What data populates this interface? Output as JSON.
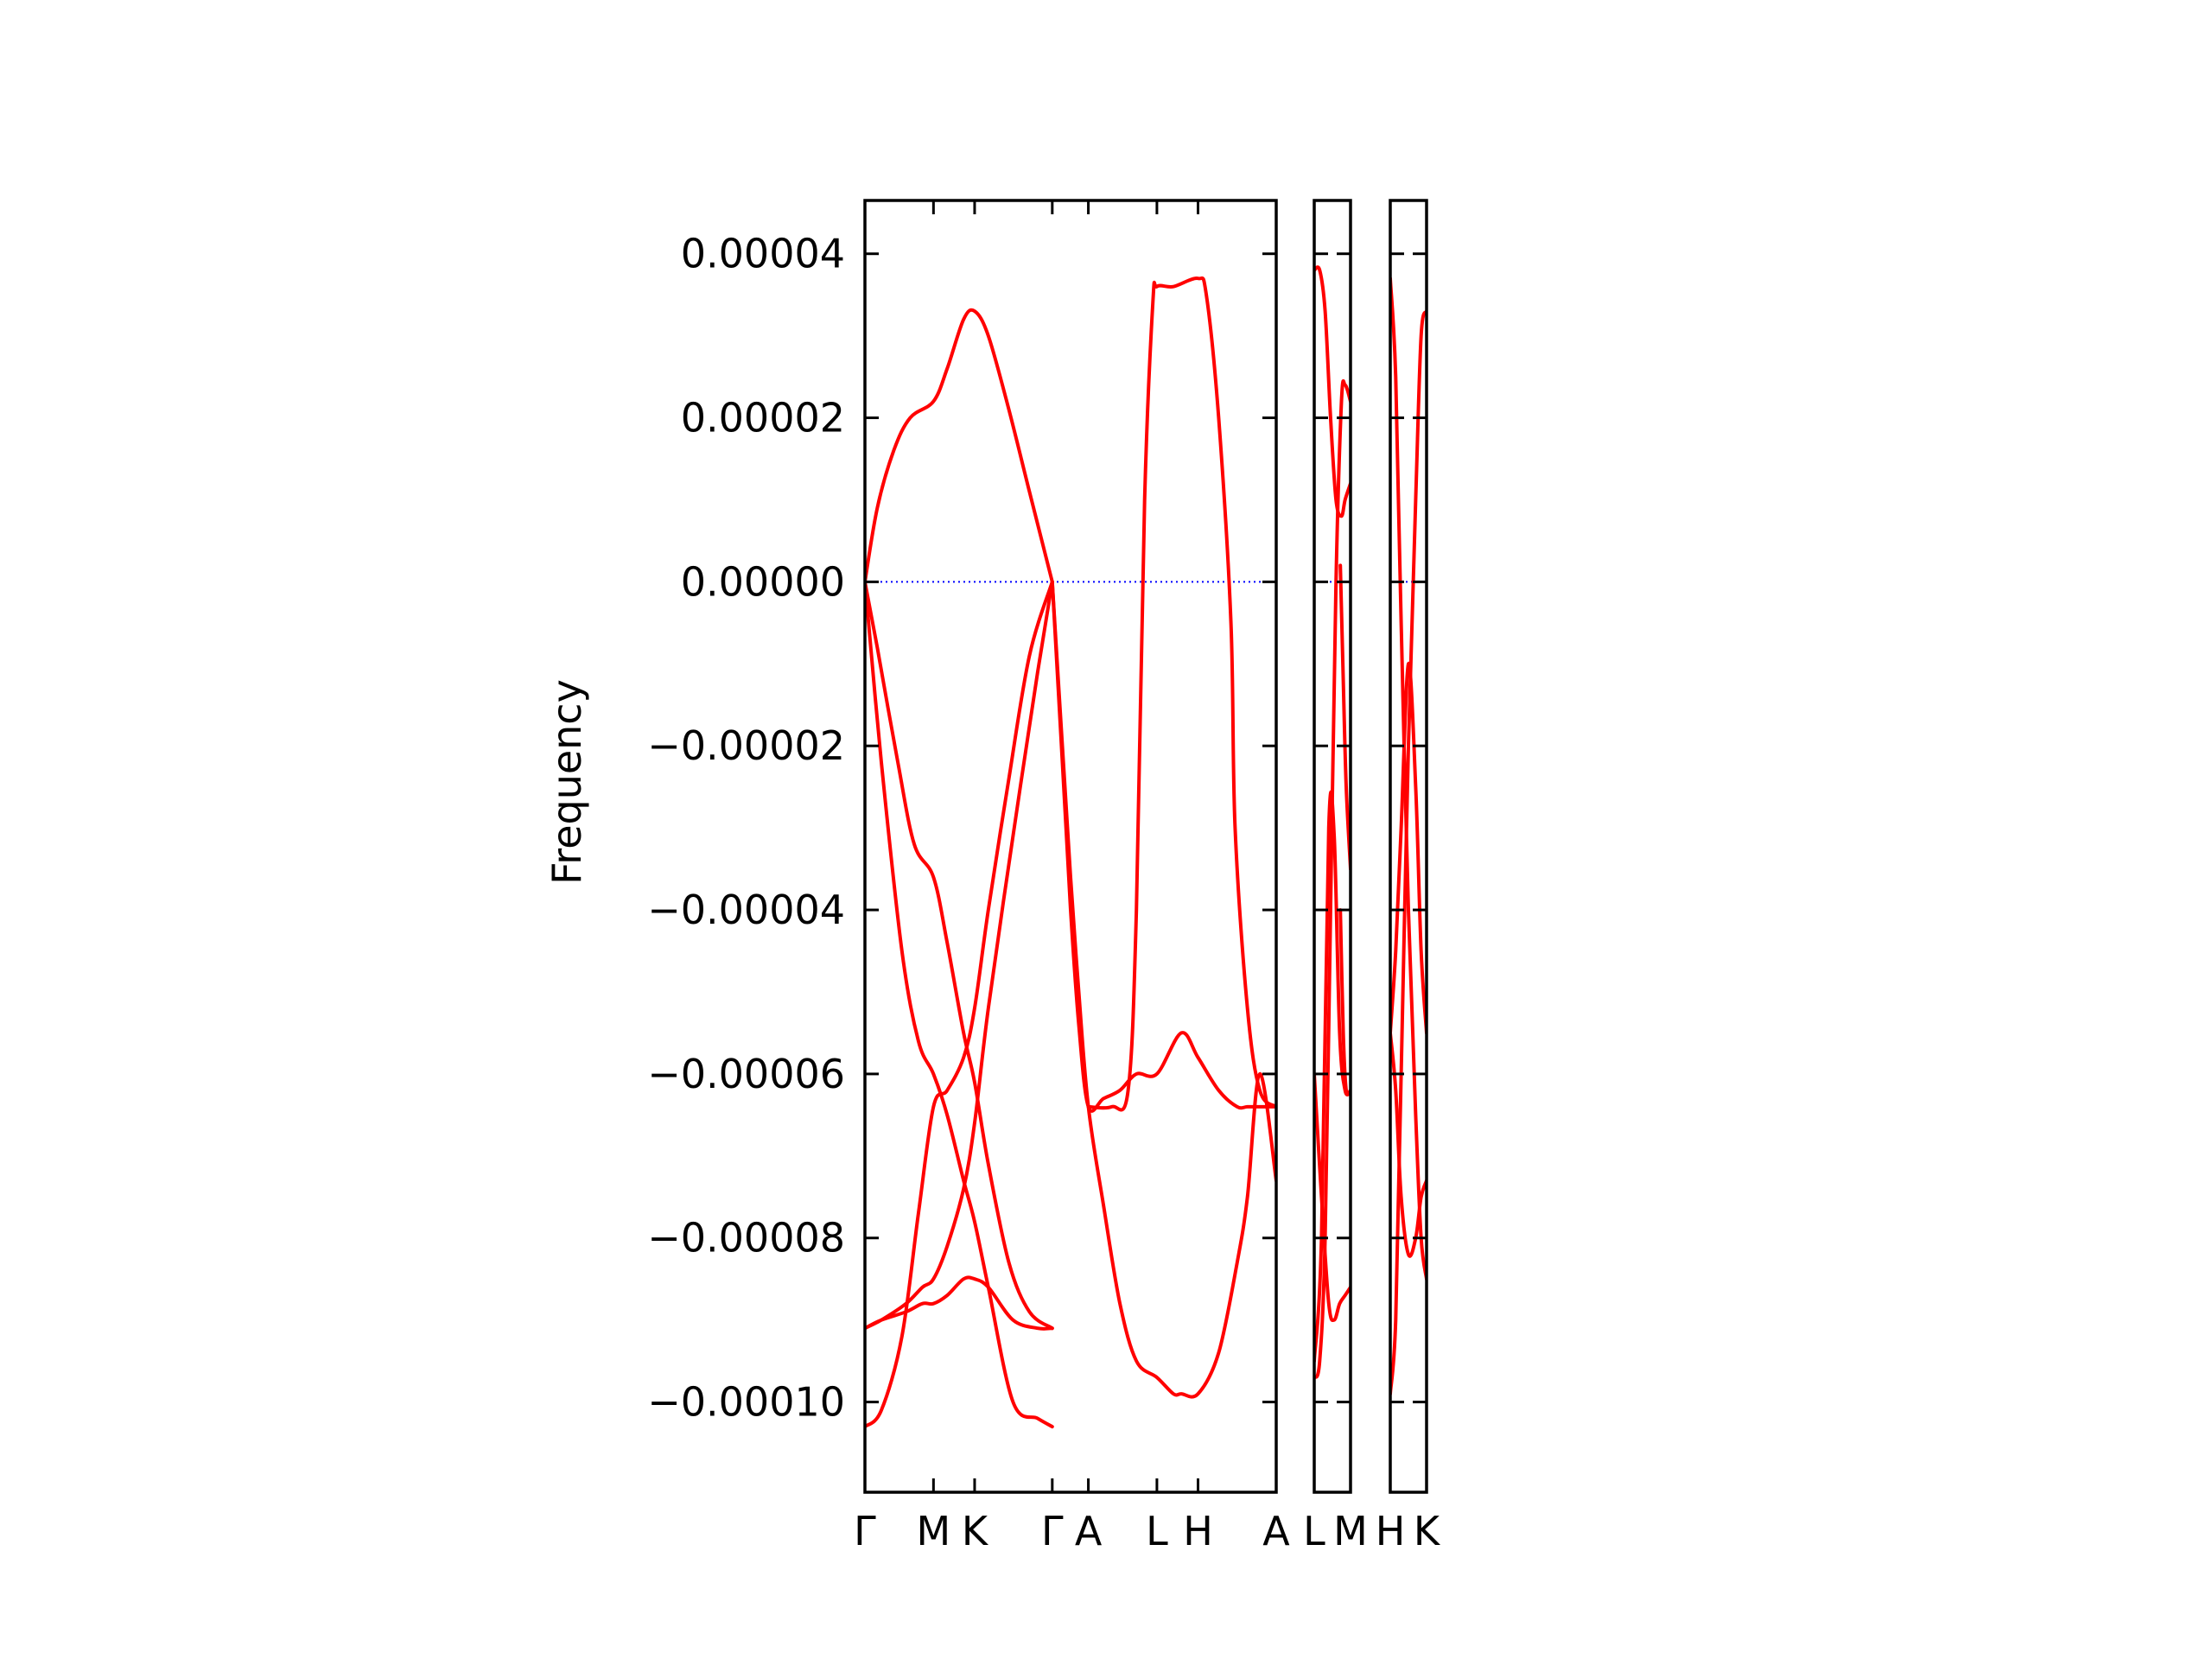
{
  "chart_data": {
    "type": "line",
    "title": "",
    "ylabel": "Frequency",
    "ylim": [
      -0.000111,
      4.65e-05
    ],
    "yticks": [
      4e-05,
      2e-05,
      0.0,
      -2e-05,
      -4e-05,
      -6e-05,
      -8e-05,
      -0.0001
    ],
    "ytick_labels": [
      "0.00004",
      "0.00002",
      "0.00000",
      "−0.00002",
      "−0.00004",
      "−0.00006",
      "−0.00008",
      "−0.00010"
    ],
    "zero_line": {
      "value": 0.0,
      "style": "dotted",
      "color": "#0000ff"
    },
    "line_color": "#ff0000",
    "xtick_labels": [
      "Γ",
      "M",
      "K",
      "Γ",
      "A",
      "L",
      "H",
      "A",
      "L",
      "M",
      "H",
      "K"
    ],
    "panels": [
      {
        "ticks": [
          {
            "label": "Γ",
            "x": 0
          },
          {
            "label": "M",
            "x": 0.1667
          },
          {
            "label": "K",
            "x": 0.2667
          },
          {
            "label": "Γ",
            "x": 0.4555
          },
          {
            "label": "A",
            "x": 0.5432
          },
          {
            "label": "L",
            "x": 0.7099
          },
          {
            "label": "H",
            "x": 0.8099
          },
          {
            "label": "A",
            "x": 1.0
          }
        ],
        "series": [
          {
            "x": [
              0,
              0.03,
              0.07,
              0.11,
              0.1667,
              0.2,
              0.24,
              0.2667,
              0.3,
              0.35,
              0.4,
              0.4555
            ],
            "y": [
              0,
              9e-06,
              1.6e-05,
              2e-05,
              2.2e-05,
              2.6e-05,
              3.2e-05,
              3.3e-05,
              3e-05,
              2.1e-05,
              1.1e-05,
              0
            ]
          },
          {
            "x": [
              0,
              0.03,
              0.08,
              0.12,
              0.1667,
              0.2,
              0.24,
              0.2667,
              0.3,
              0.35,
              0.4,
              0.4555
            ],
            "y": [
              0,
              -8e-06,
              -2.2e-05,
              -3.2e-05,
              -3.6e-05,
              -4.4e-05,
              -5.5e-05,
              -6.1e-05,
              -7.1e-05,
              -8.3e-05,
              -8.9e-05,
              -9.1e-05
            ]
          },
          {
            "x": [
              0,
              0.04,
              0.09,
              0.13,
              0.1667,
              0.2,
              0.24,
              0.2667,
              0.3,
              0.36,
              0.42,
              0.4555
            ],
            "y": [
              0,
              -2.2e-05,
              -4.5e-05,
              -5.6e-05,
              -6e-05,
              -6.5e-05,
              -7.3e-05,
              -7.8e-05,
              -8.6e-05,
              -0.0001,
              -0.000102,
              -0.000103
            ]
          },
          {
            "x": [
              0,
              0.04,
              0.1,
              0.14,
              0.1667,
              0.2,
              0.24,
              0.2667,
              0.3,
              0.36,
              0.42,
              0.4555
            ],
            "y": [
              -9.1e-05,
              -9e-05,
              -8.8e-05,
              -8.6e-05,
              -8.5e-05,
              -8.1e-05,
              -7.4e-05,
              -6.6e-05,
              -5.2e-05,
              -3.1e-05,
              -1.1e-05,
              0
            ]
          },
          {
            "x": [
              0,
              0.04,
              0.1,
              0.14,
              0.1667,
              0.2,
              0.24,
              0.2667,
              0.3,
              0.36,
              0.42,
              0.4555
            ],
            "y": [
              -9.1e-05,
              -9e-05,
              -8.9e-05,
              -8.8e-05,
              -8.8e-05,
              -8.7e-05,
              -8.5e-05,
              -8.5e-05,
              -8.6e-05,
              -9e-05,
              -9.1e-05,
              -9.1e-05
            ]
          },
          {
            "x": [
              0,
              0.04,
              0.09,
              0.13,
              0.1667,
              0.2,
              0.24,
              0.2667,
              0.3,
              0.35,
              0.4,
              0.4555
            ],
            "y": [
              -0.000103,
              -0.000101,
              -9.2e-05,
              -7.7e-05,
              -6.4e-05,
              -6.2e-05,
              -5.8e-05,
              -5.2e-05,
              -4e-05,
              -2.4e-05,
              -9e-06,
              0
            ]
          },
          {
            "x": [
              0.4555,
              0.48,
              0.5,
              0.52,
              0.5432,
              0.58,
              0.62,
              0.66,
              0.7099,
              0.75,
              0.7693,
              0.8099,
              0.86,
              0.905,
              0.93,
              0.96,
              1.0
            ],
            "y": [
              0,
              -2e-05,
              -3.6e-05,
              -5e-05,
              -6.4e-05,
              -7.6e-05,
              -8.8e-05,
              -9.5e-05,
              -9.7e-05,
              -9.9e-05,
              -9.9e-05,
              -9.9e-05,
              -9.4e-05,
              -8.3e-05,
              -7.5e-05,
              -6e-05,
              -7.3e-05
            ]
          },
          {
            "x": [
              0.4555,
              0.48,
              0.5,
              0.52,
              0.5432,
              0.58,
              0.62,
              0.66,
              0.7099,
              0.7693,
              0.8099,
              0.86,
              0.905,
              0.93,
              0.96,
              1.0
            ],
            "y": [
              0,
              -2.2e-05,
              -4e-05,
              -5.4e-05,
              -6.4e-05,
              -6.3e-05,
              -6.2e-05,
              -6e-05,
              -6e-05,
              -5.5e-05,
              -5.8e-05,
              -6.2e-05,
              -6.4e-05,
              -6.4e-05,
              -6.4e-05,
              -6.4e-05
            ]
          },
          {
            "x": [
              0.5432,
              0.6,
              0.64,
              0.66,
              0.68,
              0.7,
              0.7099,
              0.75,
              0.8099,
              0.83,
              0.86,
              0.89,
              0.9,
              0.93,
              0.96,
              1.0
            ],
            "y": [
              -6.4e-05,
              -6.4e-05,
              -6.2e-05,
              -4e-05,
              1e-05,
              3.4e-05,
              3.6e-05,
              3.6e-05,
              3.7e-05,
              3.5e-05,
              2e-05,
              -5e-06,
              -3e-05,
              -5.2e-05,
              -6.2e-05,
              -6.4e-05
            ]
          }
        ]
      },
      {
        "ticks": [
          {
            "label": "L",
            "x": 0
          },
          {
            "label": "M",
            "x": 1.0
          }
        ],
        "series": [
          {
            "x": [
              0,
              0.15,
              0.3,
              0.45,
              0.6,
              0.75,
              0.85,
              1.0
            ],
            "y": [
              -9.7e-05,
              -9.5e-05,
              -8e-05,
              -4e-05,
              0.0,
              2.2e-05,
              2.4e-05,
              2.2e-05
            ]
          },
          {
            "x": [
              0,
              0.15,
              0.3,
              0.45,
              0.6,
              0.75,
              0.85,
              1.0
            ],
            "y": [
              3.8e-05,
              3.8e-05,
              3.3e-05,
              2e-05,
              1e-05,
              8e-06,
              1e-05,
              1.2e-05
            ]
          },
          {
            "x": [
              0,
              0.2,
              0.4,
              0.55,
              0.7,
              0.85,
              1.0
            ],
            "y": [
              -9.5e-05,
              -8e-05,
              -3e-05,
              -3.1e-05,
              -5.5e-05,
              -6.2e-05,
              -6.2e-05
            ]
          },
          {
            "x": [
              0,
              0.2,
              0.4,
              0.55,
              0.7,
              0.85,
              1.0
            ],
            "y": [
              -6e-05,
              -7.5e-05,
              -8.8e-05,
              -9e-05,
              -8.8e-05,
              -8.7e-05,
              -8.6e-05
            ]
          },
          {
            "x": [
              0.72,
              0.8,
              0.88,
              1.0
            ],
            "y": [
              2e-06,
              -1.2e-05,
              -2.5e-05,
              -3.5e-05
            ]
          },
          {
            "x": [
              0.72,
              0.8,
              0.88,
              1.0
            ],
            "y": [
              -4e-05,
              -5.5e-05,
              -6.2e-05,
              -6.2e-05
            ]
          }
        ]
      },
      {
        "ticks": [
          {
            "label": "H",
            "x": 0
          },
          {
            "label": "K",
            "x": 1.0
          }
        ],
        "series": [
          {
            "x": [
              0,
              0.15,
              0.3,
              0.5,
              0.7,
              0.85,
              1.0
            ],
            "y": [
              3.7e-05,
              2.5e-05,
              -5e-06,
              -4e-05,
              -6.5e-05,
              -8e-05,
              -8.5e-05
            ]
          },
          {
            "x": [
              0,
              0.15,
              0.3,
              0.5,
              0.7,
              0.85,
              1.0
            ],
            "y": [
              -9.9e-05,
              -9e-05,
              -6e-05,
              -2e-05,
              1e-05,
              3e-05,
              3.3e-05
            ]
          },
          {
            "x": [
              0,
              0.15,
              0.3,
              0.5,
              0.7,
              0.85,
              1.0
            ],
            "y": [
              -5.5e-05,
              -6.2e-05,
              -7.5e-05,
              -8.2e-05,
              -8e-05,
              -7.5e-05,
              -7.3e-05
            ]
          },
          {
            "x": [
              0,
              0.15,
              0.3,
              0.5,
              0.7,
              0.85,
              1.0
            ],
            "y": [
              -5.5e-05,
              -4.5e-05,
              -3e-05,
              -1e-05,
              -2.5e-05,
              -4.5e-05,
              -5.5e-05
            ]
          }
        ]
      }
    ]
  }
}
